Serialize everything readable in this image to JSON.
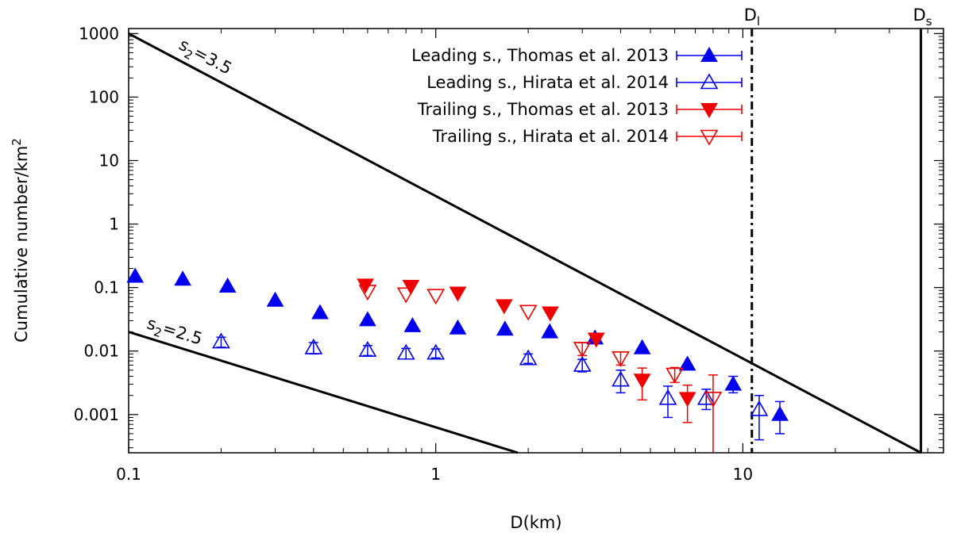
{
  "chart_data": {
    "type": "scatter",
    "xscale": "log",
    "yscale": "log",
    "xlim": [
      0.1,
      45
    ],
    "ylim": [
      0.00025,
      1200
    ],
    "xlabel": "D(km)",
    "ylabel": "Cumulative number/km²",
    "x_ticks": [
      {
        "value": 0.1,
        "label": "0.1"
      },
      {
        "value": 1,
        "label": "1"
      },
      {
        "value": 10,
        "label": "10"
      }
    ],
    "y_ticks": [
      {
        "value": 1000,
        "label": "1000"
      },
      {
        "value": 100,
        "label": "100"
      },
      {
        "value": 10,
        "label": "10"
      },
      {
        "value": 1,
        "label": "1"
      },
      {
        "value": 0.1,
        "label": "0.1"
      },
      {
        "value": 0.01,
        "label": "0.01"
      },
      {
        "value": 0.001,
        "label": "0.001"
      }
    ],
    "legend_position": "top-right",
    "series": [
      {
        "name": "Leading s., Thomas et al. 2013",
        "color": "#0000ee",
        "marker": "triangle-up-filled",
        "points": [
          {
            "x": 0.105,
            "y": 0.15
          },
          {
            "x": 0.15,
            "y": 0.135
          },
          {
            "x": 0.21,
            "y": 0.105
          },
          {
            "x": 0.3,
            "y": 0.063
          },
          {
            "x": 0.42,
            "y": 0.04
          },
          {
            "x": 0.6,
            "y": 0.031
          },
          {
            "x": 0.84,
            "y": 0.025
          },
          {
            "x": 1.18,
            "y": 0.023
          },
          {
            "x": 1.68,
            "y": 0.022
          },
          {
            "x": 2.35,
            "y": 0.02
          },
          {
            "x": 3.3,
            "y": 0.016
          },
          {
            "x": 4.7,
            "y": 0.0112
          },
          {
            "x": 6.6,
            "y": 0.0062
          },
          {
            "x": 9.3,
            "y": 0.003,
            "err": [
              0.0022,
              0.004
            ]
          },
          {
            "x": 13.2,
            "y": 0.001,
            "err": [
              0.0005,
              0.0016
            ]
          }
        ]
      },
      {
        "name": "Leading s., Hirata et al. 2014",
        "color": "#0000ee",
        "marker": "triangle-up-open",
        "points": [
          {
            "x": 0.2,
            "y": 0.014,
            "err": [
              0.0115,
              0.0165
            ]
          },
          {
            "x": 0.4,
            "y": 0.0113,
            "err": [
              0.009,
              0.0136
            ]
          },
          {
            "x": 0.6,
            "y": 0.0103,
            "err": [
              0.0085,
              0.0122
            ]
          },
          {
            "x": 0.8,
            "y": 0.0093,
            "err": [
              0.0075,
              0.011
            ]
          },
          {
            "x": 1.0,
            "y": 0.0093,
            "err": [
              0.0078,
              0.0108
            ]
          },
          {
            "x": 2.0,
            "y": 0.0076,
            "err": [
              0.0064,
              0.009
            ]
          },
          {
            "x": 3.0,
            "y": 0.006,
            "err": [
              0.0047,
              0.0074
            ]
          },
          {
            "x": 4.0,
            "y": 0.0035,
            "err": [
              0.0022,
              0.005
            ]
          },
          {
            "x": 5.7,
            "y": 0.0018,
            "err": [
              0.0009,
              0.0028
            ]
          },
          {
            "x": 7.6,
            "y": 0.0018,
            "err": [
              0.0012,
              0.0025
            ]
          },
          {
            "x": 11.3,
            "y": 0.0012,
            "err": [
              0.0004,
              0.002
            ]
          }
        ]
      },
      {
        "name": "Trailing s., Thomas et al. 2013",
        "color": "#ee0000",
        "marker": "triangle-down-filled",
        "points": [
          {
            "x": 0.59,
            "y": 0.11
          },
          {
            "x": 0.83,
            "y": 0.105
          },
          {
            "x": 1.18,
            "y": 0.082
          },
          {
            "x": 1.67,
            "y": 0.052
          },
          {
            "x": 2.36,
            "y": 0.04
          },
          {
            "x": 3.33,
            "y": 0.0155
          },
          {
            "x": 4.7,
            "y": 0.0035,
            "err": [
              0.0017,
              0.0054
            ]
          },
          {
            "x": 6.6,
            "y": 0.0018,
            "err": [
              0.00075,
              0.0029
            ]
          }
        ]
      },
      {
        "name": "Trailing s., Hirata et al. 2014",
        "color": "#ee0000",
        "marker": "triangle-down-open",
        "points": [
          {
            "x": 0.6,
            "y": 0.087
          },
          {
            "x": 0.8,
            "y": 0.079
          },
          {
            "x": 1.0,
            "y": 0.075
          },
          {
            "x": 2.0,
            "y": 0.042
          },
          {
            "x": 3.0,
            "y": 0.011,
            "err": [
              0.0085,
              0.0135
            ]
          },
          {
            "x": 4.0,
            "y": 0.0078,
            "err": [
              0.006,
              0.0097
            ]
          },
          {
            "x": 6.0,
            "y": 0.0043,
            "err": [
              0.0032,
              0.0055
            ]
          },
          {
            "x": 8.0,
            "y": 0.0018,
            "err": [
              0.0001,
              0.0042
            ]
          }
        ]
      }
    ],
    "lines": [
      {
        "name": "s2=3.5",
        "label_base": "s",
        "label_sub": "2",
        "label_rest": "=3.5",
        "style": "solid",
        "points": [
          [
            0.1,
            1000
          ],
          [
            38,
            0.00025
          ]
        ]
      },
      {
        "name": "s2=2.5",
        "label_base": "s",
        "label_sub": "2",
        "label_rest": "=2.5",
        "style": "solid",
        "points": [
          [
            0.1,
            0.02
          ],
          [
            1.85,
            0.00025
          ]
        ]
      }
    ],
    "vlines": [
      {
        "name": "Dl",
        "x": 10.7,
        "style": "dashdot",
        "label_base": "D",
        "label_sub": "l"
      },
      {
        "name": "Ds",
        "x": 38,
        "style": "solid",
        "label_base": "D",
        "label_sub": "s"
      }
    ]
  }
}
